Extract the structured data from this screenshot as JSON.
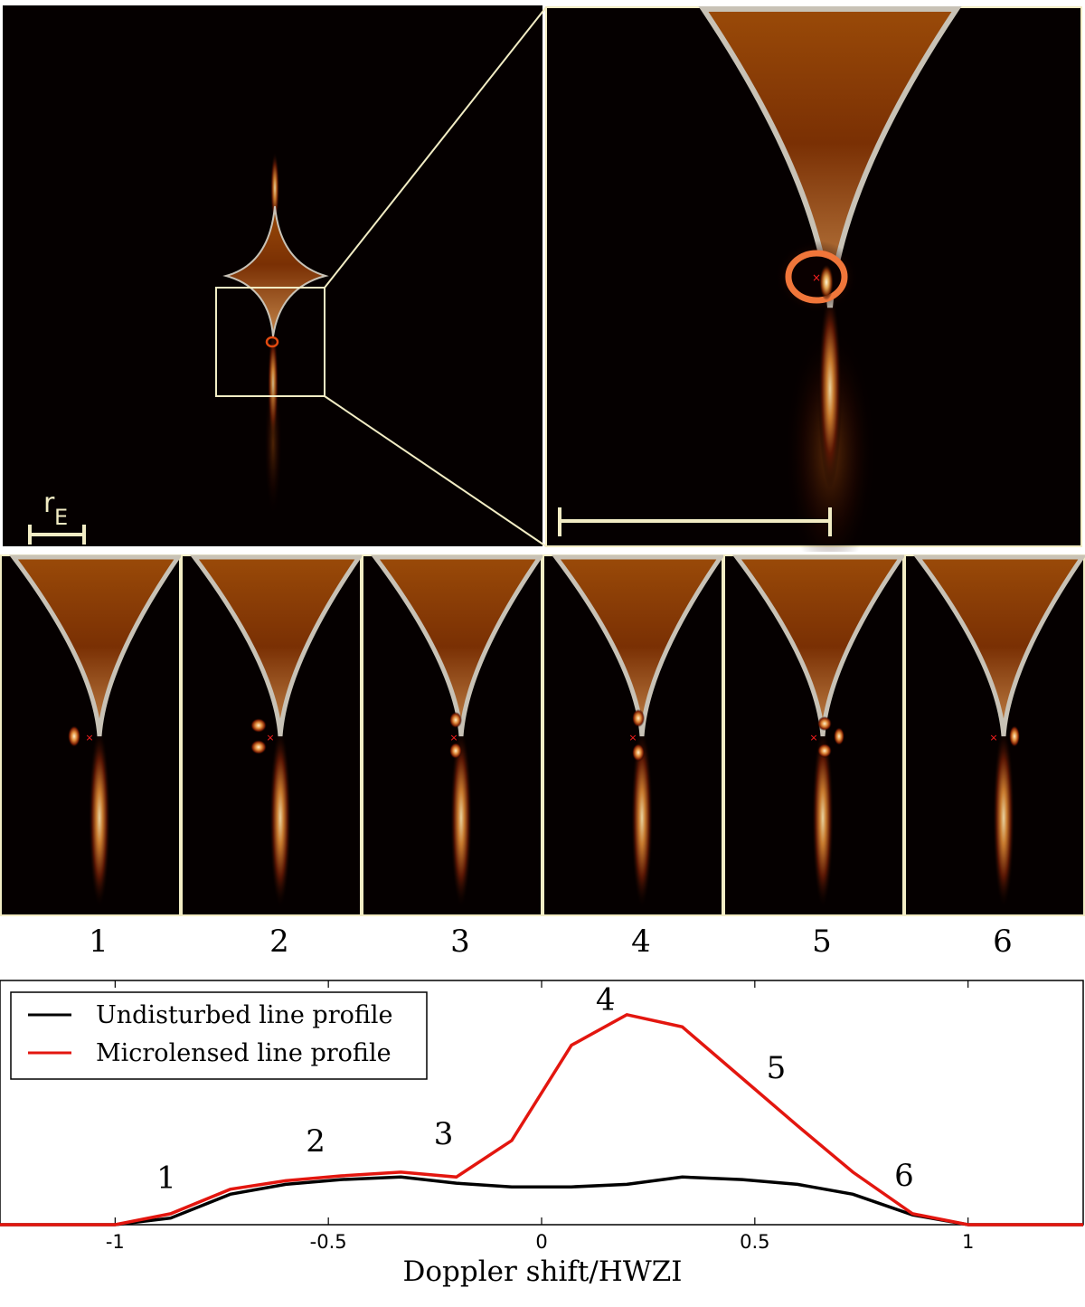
{
  "figure": {
    "scale_bar_label": "r",
    "scale_bar_subscript": "E",
    "panel_labels": [
      "1",
      "2",
      "3",
      "4",
      "5",
      "6"
    ],
    "colors": {
      "background": "#050000",
      "frame": "#f2ecc4",
      "caustic_edge": "#b8b4ae",
      "caustic_fill": "#8a4206",
      "hot": "#ffd8a0",
      "source_marker": "#ff2020"
    }
  },
  "chart_data": {
    "type": "line",
    "xlabel": "Doppler shift/HWZI",
    "ylabel": "",
    "xlim": [
      -1.27,
      1.27
    ],
    "ylim": [
      0,
      1
    ],
    "grid": false,
    "legend_position": "top-left",
    "xticks": [
      -1,
      -0.5,
      0,
      0.5,
      1
    ],
    "xtick_labels": [
      "-1",
      "-0.5",
      "0",
      "0.5",
      "1"
    ],
    "series": [
      {
        "name": "Undisturbed line profile",
        "color": "#000000",
        "x": [
          -1.27,
          -1.0,
          -0.87,
          -0.73,
          -0.6,
          -0.47,
          -0.33,
          -0.2,
          -0.07,
          0.07,
          0.2,
          0.33,
          0.47,
          0.6,
          0.73,
          0.87,
          1.0,
          1.27
        ],
        "y": [
          0.0,
          0.0,
          0.027,
          0.125,
          0.165,
          0.185,
          0.195,
          0.17,
          0.155,
          0.155,
          0.165,
          0.195,
          0.185,
          0.165,
          0.125,
          0.04,
          0.0,
          0.0
        ]
      },
      {
        "name": "Microlensed line profile",
        "color": "#e3160f",
        "x": [
          -1.27,
          -1.0,
          -0.87,
          -0.73,
          -0.6,
          -0.47,
          -0.33,
          -0.2,
          -0.07,
          0.07,
          0.2,
          0.33,
          0.47,
          0.6,
          0.73,
          0.87,
          1.0,
          1.27
        ],
        "y": [
          0.0,
          0.0,
          0.045,
          0.145,
          0.18,
          0.2,
          0.215,
          0.195,
          0.345,
          0.735,
          0.86,
          0.81,
          0.6,
          0.405,
          0.215,
          0.045,
          0.0,
          0.0
        ]
      }
    ],
    "annotations": [
      {
        "text": "1",
        "x": -0.88,
        "y": 0.15
      },
      {
        "text": "2",
        "x": -0.53,
        "y": 0.3
      },
      {
        "text": "3",
        "x": -0.23,
        "y": 0.33
      },
      {
        "text": "4",
        "x": 0.15,
        "y": 0.88
      },
      {
        "text": "5",
        "x": 0.55,
        "y": 0.6
      },
      {
        "text": "6",
        "x": 0.85,
        "y": 0.16
      }
    ]
  }
}
